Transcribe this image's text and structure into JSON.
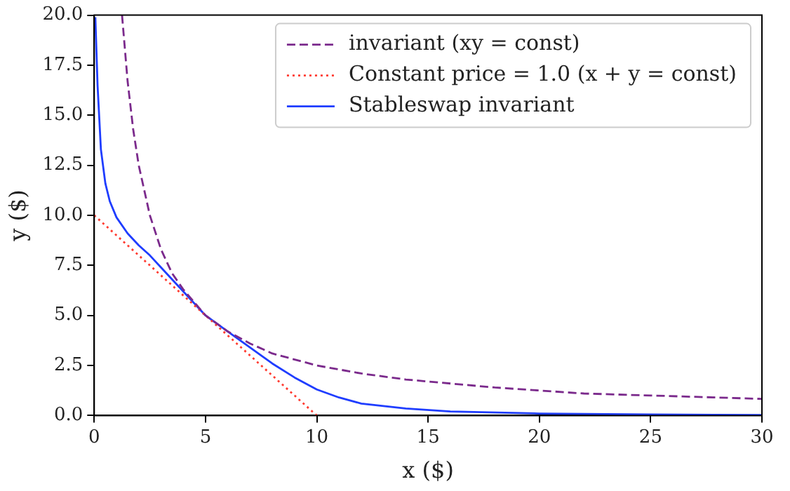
{
  "chart_data": {
    "type": "line",
    "xlabel": "x ($)",
    "ylabel": "y ($)",
    "xlim": [
      0,
      30
    ],
    "ylim": [
      0,
      20
    ],
    "xticks": [
      0,
      5,
      10,
      15,
      20,
      25,
      30
    ],
    "yticks": [
      {
        "value": 0,
        "label": "0.0"
      },
      {
        "value": 2.5,
        "label": "2.5"
      },
      {
        "value": 5,
        "label": "5.0"
      },
      {
        "value": 7.5,
        "label": "7.5"
      },
      {
        "value": 10,
        "label": "10.0"
      },
      {
        "value": 12.5,
        "label": "12.5"
      },
      {
        "value": 15,
        "label": "15.0"
      },
      {
        "value": 17.5,
        "label": "17.5"
      },
      {
        "value": 20,
        "label": "20.0"
      }
    ],
    "grid": false,
    "legend": "top right",
    "marker": "none",
    "series": [
      {
        "name": "invariant (xy = const)",
        "color": "#7b2a8c",
        "line_style": "dashed",
        "x": [
          1.25,
          1.5,
          1.75,
          2,
          2.5,
          3,
          3.5,
          4,
          5,
          6,
          7,
          8,
          10,
          12,
          14,
          16,
          18,
          20,
          22,
          25,
          28,
          30
        ],
        "values": [
          20,
          16.7,
          14.3,
          12.5,
          10,
          8.3,
          7.1,
          6.3,
          5,
          4.2,
          3.6,
          3.1,
          2.5,
          2.1,
          1.8,
          1.6,
          1.4,
          1.25,
          1.1,
          1,
          0.9,
          0.83
        ]
      },
      {
        "name": "Constant price = 1.0 (x + y = const)",
        "color": "#ff3b30",
        "line_style": "dotted",
        "x": [
          0,
          10
        ],
        "values": [
          10,
          0
        ]
      },
      {
        "name": "Stableswap invariant",
        "color": "#1f3dff",
        "line_style": "solid",
        "x": [
          0.05,
          0.15,
          0.3,
          0.5,
          0.7,
          1,
          1.5,
          2,
          2.5,
          3,
          4,
          5,
          6,
          7,
          8,
          9,
          10,
          11,
          12,
          14,
          16,
          20,
          25,
          30
        ],
        "values": [
          19.9,
          16.5,
          13.3,
          11.6,
          10.7,
          9.9,
          9.1,
          8.5,
          8,
          7.4,
          6.2,
          5,
          4.2,
          3.4,
          2.6,
          1.9,
          1.3,
          0.9,
          0.6,
          0.35,
          0.2,
          0.1,
          0.05,
          0.03
        ]
      }
    ]
  }
}
